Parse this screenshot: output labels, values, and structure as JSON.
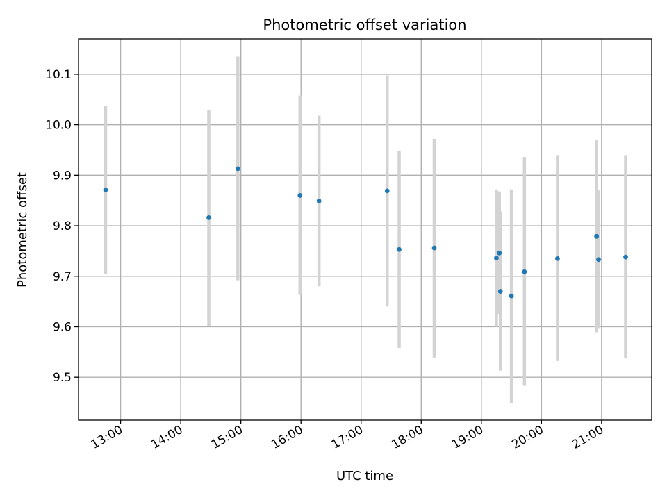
{
  "chart_data": {
    "type": "scatter",
    "title": "Photometric offset variation",
    "xlabel": "UTC time",
    "ylabel": "Photometric offset",
    "x_tick_labels": [
      "13:00",
      "14:00",
      "15:00",
      "16:00",
      "17:00",
      "18:00",
      "19:00",
      "20:00",
      "21:00"
    ],
    "x_ticks": [
      "13:00",
      "14:00",
      "15:00",
      "16:00",
      "17:00",
      "18:00",
      "19:00",
      "20:00",
      "21:00"
    ],
    "y_ticks": [
      9.5,
      9.6,
      9.7,
      9.8,
      9.9,
      10.0,
      10.1
    ],
    "y_tick_labels": [
      "9.5",
      "9.6",
      "9.7",
      "9.8",
      "9.9",
      "10.0",
      "10.1"
    ],
    "xlim": [
      "12:18",
      "21:50"
    ],
    "ylim": [
      9.415,
      10.17
    ],
    "grid": true,
    "series": [
      {
        "color": "#1f77b4",
        "error_color": "#d3d3d3",
        "points": [
          {
            "x": "12:45",
            "y": 9.871,
            "y_low": 9.705,
            "y_high": 10.037
          },
          {
            "x": "14:28",
            "y": 9.816,
            "y_low": 9.601,
            "y_high": 10.029
          },
          {
            "x": "14:57",
            "y": 9.913,
            "y_low": 9.692,
            "y_high": 10.135
          },
          {
            "x": "15:59",
            "y": 9.86,
            "y_low": 9.663,
            "y_high": 10.058
          },
          {
            "x": "16:18",
            "y": 9.849,
            "y_low": 9.68,
            "y_high": 10.018
          },
          {
            "x": "17:26",
            "y": 9.869,
            "y_low": 9.64,
            "y_high": 10.098
          },
          {
            "x": "17:38",
            "y": 9.753,
            "y_low": 9.558,
            "y_high": 9.948
          },
          {
            "x": "18:13",
            "y": 9.756,
            "y_low": 9.539,
            "y_high": 9.972
          },
          {
            "x": "19:15",
            "y": 9.736,
            "y_low": 9.6,
            "y_high": 9.872
          },
          {
            "x": "19:18",
            "y": 9.746,
            "y_low": 9.625,
            "y_high": 9.868
          },
          {
            "x": "19:19",
            "y": 9.67,
            "y_low": 9.513,
            "y_high": 9.828
          },
          {
            "x": "19:30",
            "y": 9.661,
            "y_low": 9.449,
            "y_high": 9.872
          },
          {
            "x": "19:43",
            "y": 9.709,
            "y_low": 9.483,
            "y_high": 9.936
          },
          {
            "x": "20:16",
            "y": 9.735,
            "y_low": 9.532,
            "y_high": 9.94
          },
          {
            "x": "20:55",
            "y": 9.779,
            "y_low": 9.589,
            "y_high": 9.969
          },
          {
            "x": "20:57",
            "y": 9.733,
            "y_low": 9.596,
            "y_high": 9.87
          },
          {
            "x": "21:24",
            "y": 9.738,
            "y_low": 9.538,
            "y_high": 9.94
          }
        ]
      }
    ]
  }
}
